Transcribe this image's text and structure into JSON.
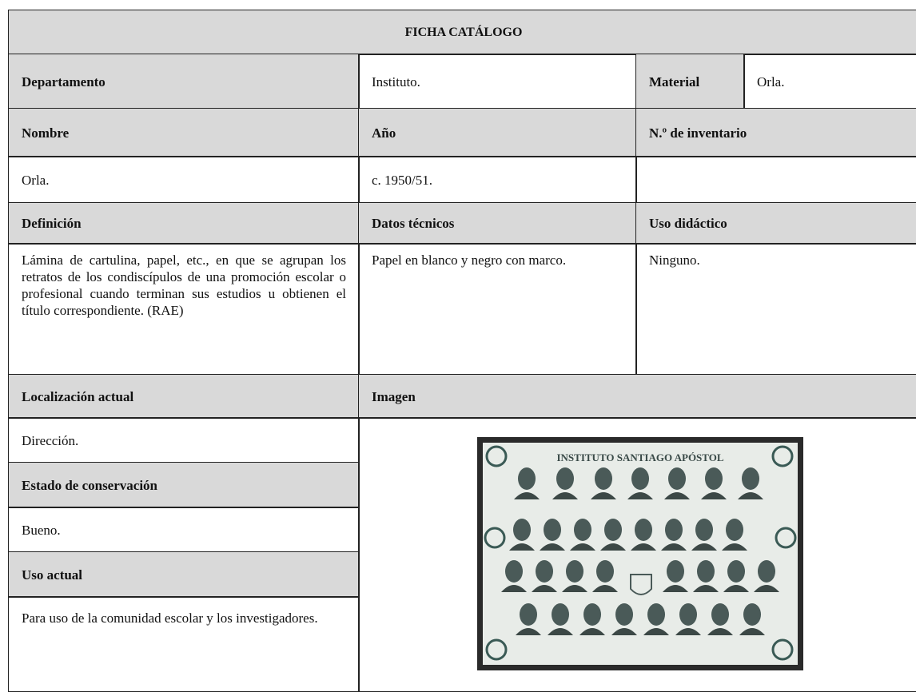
{
  "ficha": {
    "title": "FICHA CATÁLOGO",
    "departamento": {
      "label": "Departamento",
      "value": "Instituto."
    },
    "material": {
      "label": "Material",
      "value": "Orla."
    },
    "nombre": {
      "label": "Nombre",
      "value": "Orla."
    },
    "anio": {
      "label": "Año",
      "value": "c. 1950/51."
    },
    "inventario": {
      "label": "N.º de inventario"
    },
    "definicion": {
      "label": "Definición",
      "value": "Lámina de cartulina, papel, etc., en que se agrupan los retratos de los condiscípulos de una promoción escolar o profesional cuando terminan sus estudios u obtienen el título correspondiente. (RAE)"
    },
    "datos_tecnicos": {
      "label": "Datos técnicos",
      "value": "Papel en blanco y negro con marco."
    },
    "uso_didactico": {
      "label": "Uso didáctico",
      "value": "Ninguno."
    },
    "localizacion": {
      "label": "Localización actual",
      "value": "Dirección."
    },
    "estado": {
      "label": "Estado de conservación",
      "value": "Bueno."
    },
    "uso_actual": {
      "label": "Uso actual",
      "value": "Para uso de la comunidad escolar y los investigadores."
    },
    "imagen": {
      "label": "Imagen",
      "caption": "INSTITUTO SANTIAGO APÓSTOL"
    }
  }
}
